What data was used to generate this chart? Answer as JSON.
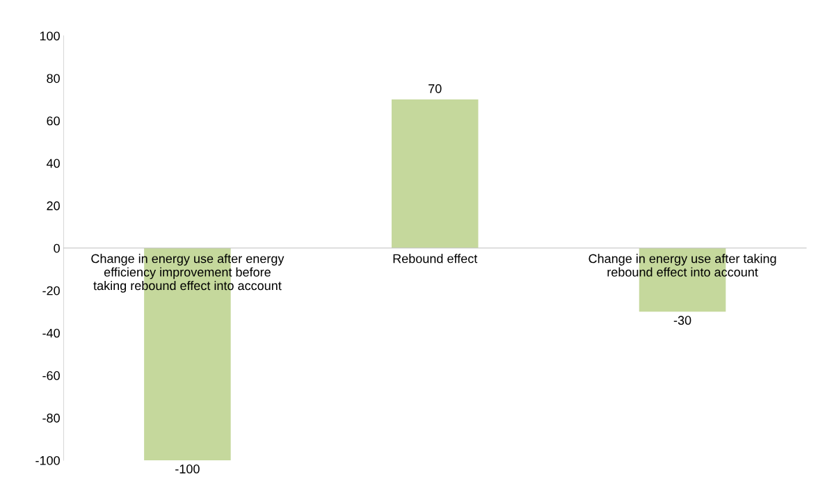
{
  "chart_data": {
    "type": "bar",
    "categories": [
      "Change in energy use after energy\nefficiency improvement before\ntaking rebound effect into account",
      "Rebound effect",
      "Change in energy use after taking\nrebound effect into account"
    ],
    "values": [
      -100,
      70,
      -30
    ],
    "color": "#c5d89c",
    "ylim": [
      -100,
      100
    ],
    "yticks": [
      -100,
      -80,
      -60,
      -40,
      -20,
      0,
      20,
      40,
      60,
      80,
      100
    ],
    "data_labels": true,
    "grid": false,
    "legend": false
  }
}
